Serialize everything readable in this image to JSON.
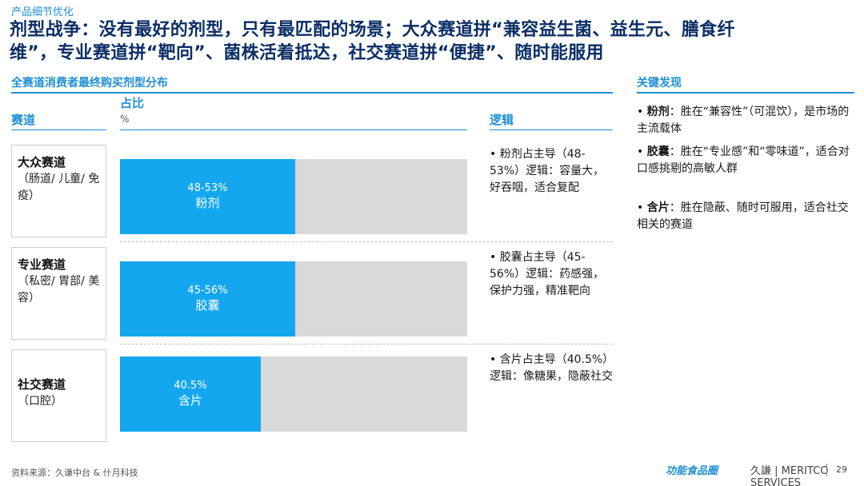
{
  "header": {
    "kicker": "产品细节优化",
    "title": "剂型战争：没有最好的剂型，只有最匹配的场景；大众赛道拼“兼容益生菌、益生元、膳食纤维”，专业赛道拼“靶向”、菌株活着抵达，社交赛道拼“便捷”、随时能服用"
  },
  "chart_section_title": "全赛道消费者最终购买剂型分布",
  "findings_title": "关键发现",
  "columns": {
    "track": "赛道",
    "share": "占比",
    "share_unit": "%",
    "logic": "逻辑"
  },
  "tracks": [
    {
      "name": "大众赛道",
      "sub": "（肠道/ 儿童/ 免疫）"
    },
    {
      "name": "专业赛道",
      "sub": "（私密/ 胃部/ 美容）"
    },
    {
      "name": "社交赛道",
      "sub": "（口腔）"
    }
  ],
  "logic": [
    "• 粉剂占主导（48-53%）逻辑：容量大，好吞咽，适合复配",
    "• 胶囊占主导（45-56%）逻辑：药感强，保护力强，精准靶向",
    "• 含片占主导（40.5%）逻辑：像糖果，隐蔽社交"
  ],
  "chart_data": {
    "type": "bar",
    "orientation": "horizontal",
    "categories": [
      "大众赛道",
      "专业赛道",
      "社交赛道"
    ],
    "values": [
      50.5,
      50.5,
      40.5
    ],
    "range_labels": [
      "48-53%",
      "45-56%",
      "40.5%"
    ],
    "dosage_forms": [
      "粉剂",
      "胶囊",
      "含片"
    ],
    "xlim": [
      0,
      100
    ],
    "ylabel": "占比",
    "unit": "%",
    "bar_color": "#14A7EF",
    "track_color": "#D9D9D9",
    "grid": false
  },
  "findings": [
    {
      "term": "粉剂",
      "text": "：胜在“兼容性”（可混饮），是市场的主流载体"
    },
    {
      "term": "胶囊",
      "text": "：胜在“专业感”和“零味道”，适合对口感挑剔的高敏人群"
    },
    {
      "term": "含片",
      "text": "：胜在隐蔽、随时可服用，适合社交相关的赛道"
    }
  ],
  "footer": {
    "source": "资料来源：久谦中台 & 什月科技",
    "logo_left": "功能食品圈",
    "logo_right": "久謙 | MERITCO SERVICES",
    "page": "29"
  }
}
